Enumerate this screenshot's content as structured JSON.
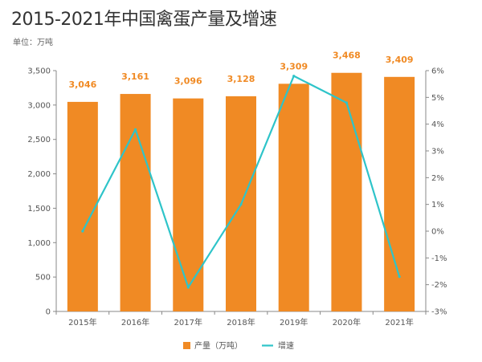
{
  "header": {
    "title": "2015-2021年中国禽蛋产量及增速",
    "unit": "单位：万吨"
  },
  "colors": {
    "bar": "#f08a24",
    "line": "#2ec4c9",
    "axis": "#888888",
    "grid": "#e6e6e6"
  },
  "chart_data": {
    "type": "bar",
    "categories": [
      "2015年",
      "2016年",
      "2017年",
      "2018年",
      "2019年",
      "2020年",
      "2021年"
    ],
    "series": [
      {
        "name": "产量（万吨）",
        "type": "bar",
        "axis": "left",
        "values": [
          3046,
          3161,
          3096,
          3128,
          3309,
          3468,
          3409
        ],
        "labels": [
          "3,046",
          "3,161",
          "3,096",
          "3,128",
          "3,309",
          "3,468",
          "3,409"
        ]
      },
      {
        "name": "增速",
        "type": "line",
        "axis": "right",
        "values": [
          0.0,
          3.8,
          -2.1,
          1.0,
          5.8,
          4.8,
          -1.7
        ]
      }
    ],
    "ylim_left": [
      0,
      3500
    ],
    "yticks_left": [
      "0",
      "500",
      "1,000",
      "1,500",
      "2,000",
      "2,500",
      "3,000",
      "3,500"
    ],
    "ylim_right": [
      -3,
      6
    ],
    "yticks_right": [
      "-3%",
      "-2%",
      "-1%",
      "0%",
      "1%",
      "2%",
      "3%",
      "4%",
      "5%",
      "6%"
    ],
    "legend": [
      "产量（万吨）",
      "增速"
    ],
    "legend_position": "bottom"
  }
}
